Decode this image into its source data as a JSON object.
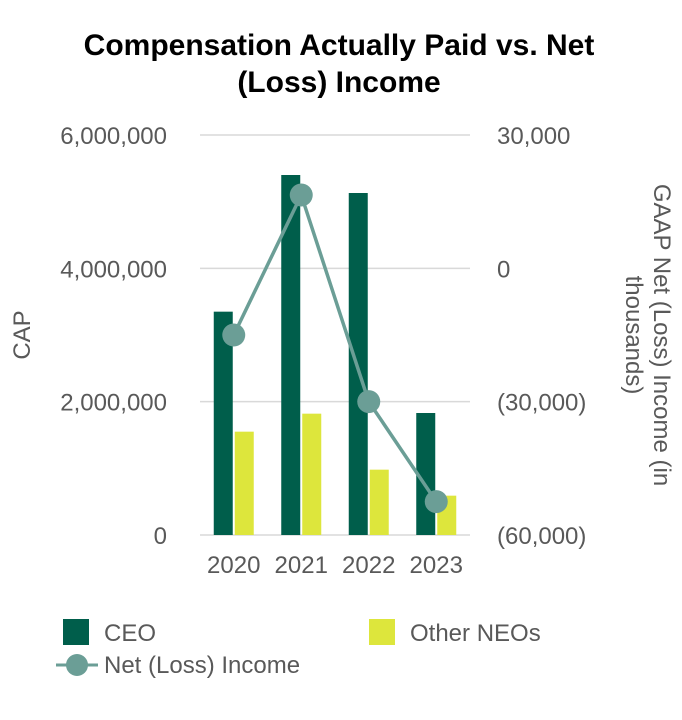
{
  "chart_data": {
    "type": "bar+line",
    "title_lines": [
      "Compensation Actually Paid vs. Net",
      "(Loss) Income"
    ],
    "categories": [
      "2020",
      "2021",
      "2022",
      "2023"
    ],
    "series": [
      {
        "name": "CEO",
        "kind": "bar",
        "axis": "left",
        "color": "#005E4B",
        "values": [
          3350000,
          5400000,
          5130000,
          1830000
        ]
      },
      {
        "name": "Other NEOs",
        "kind": "bar",
        "axis": "left",
        "color": "#DDE63C",
        "values": [
          1550000,
          1820000,
          980000,
          590000
        ]
      },
      {
        "name": "Net (Loss) Income",
        "kind": "line",
        "axis": "right",
        "color": "#6B9E96",
        "values": [
          -15000,
          16500,
          -30000,
          -52500
        ]
      }
    ],
    "left_axis": {
      "label": "CAP",
      "min": 0,
      "max": 6000000,
      "ticks": [
        0,
        2000000,
        4000000,
        6000000
      ],
      "tick_labels": [
        "0",
        "2,000,000",
        "4,000,000",
        "6,000,000"
      ]
    },
    "right_axis": {
      "label_lines": [
        "GAAP Net (Loss) Income (in",
        "thousands)"
      ],
      "min": -60000,
      "max": 30000,
      "ticks": [
        -60000,
        -30000,
        0,
        30000
      ],
      "tick_labels": [
        "(60,000)",
        "(30,000)",
        "0",
        "30,000"
      ]
    },
    "gridlines": true,
    "legend_position": "bottom"
  }
}
